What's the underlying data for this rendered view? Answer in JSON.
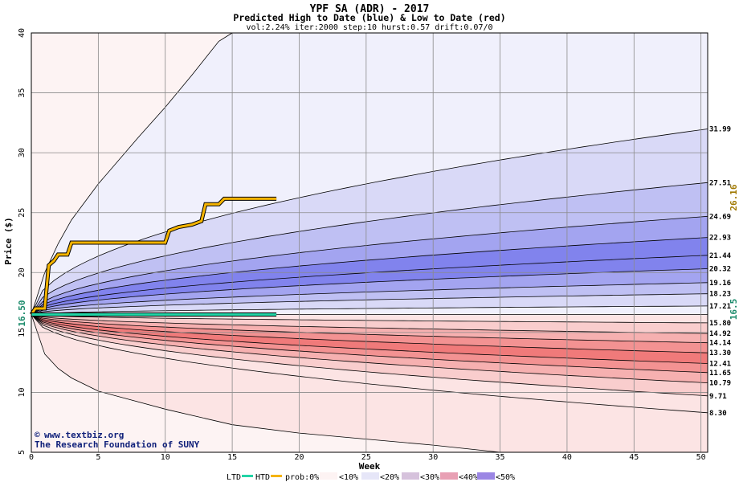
{
  "header": {
    "title": "YPF SA (ADR) - 2017",
    "subtitle": "Predicted High to Date (blue) &  Low to Date (red)",
    "params": "vol:2.24% iter:2000 step:10 hurst:0.57 drift:0.07/0"
  },
  "axes": {
    "xlabel": "Week",
    "ylabel": "Price ($)"
  },
  "footer": {
    "website": "www.textbiz.org",
    "copyright_symbol": "©",
    "org": "The Research Foundation of SUNY"
  },
  "annotations": {
    "start_price_label": "16.50",
    "current_low_label": "16.5",
    "current_high_label": "26.16"
  },
  "legend": {
    "ltd": "LTD",
    "htd": "HTD",
    "prob": "prob:0%",
    "bins": [
      "<10%",
      "<20%",
      "<30%",
      "<40%",
      "<50%"
    ]
  },
  "colors": {
    "plot_bg": "#fdf3f3",
    "band_blue_1": "#f0f0fc",
    "band_blue_2": "#d9d9f7",
    "band_blue_3": "#bfc0f3",
    "band_blue_4": "#a3a4f0",
    "band_blue_5": "#8183ed",
    "band_red_1": "#fce4e4",
    "band_red_2": "#f9cdcd",
    "band_red_3": "#f6b0b0",
    "band_red_4": "#f39292",
    "band_red_5": "#f07a7a",
    "htd_line": "#f5b400",
    "ltd_line": "#22d4a6",
    "right_label_gold": "#a07800",
    "right_label_green": "#1a8a6a"
  },
  "chart_data": {
    "type": "area",
    "x_range": [
      0,
      50.5
    ],
    "y_range": [
      5,
      40
    ],
    "x_ticks": [
      0,
      5,
      10,
      15,
      20,
      25,
      30,
      35,
      40,
      45,
      50
    ],
    "y_ticks": [
      5,
      10,
      15,
      20,
      25,
      30,
      35,
      40
    ],
    "grid": true,
    "start_price": 16.5,
    "outer_high_envelope": [
      [
        0,
        16.5
      ],
      [
        1,
        20.0
      ],
      [
        2,
        22.4
      ],
      [
        3,
        24.4
      ],
      [
        5,
        27.4
      ],
      [
        8,
        31.3
      ],
      [
        10,
        33.8
      ],
      [
        12,
        36.5
      ],
      [
        14,
        39.3
      ],
      [
        15,
        40.0
      ]
    ],
    "outer_low_envelope": [
      [
        0,
        16.5
      ],
      [
        1,
        13.2
      ],
      [
        2,
        12.0
      ],
      [
        3,
        11.2
      ],
      [
        5,
        10.1
      ],
      [
        10,
        8.6
      ],
      [
        15,
        7.3
      ],
      [
        20,
        6.6
      ],
      [
        25,
        6.1
      ],
      [
        30,
        5.6
      ],
      [
        35,
        5.0
      ]
    ],
    "right_labels": [
      "31.99",
      "27.51",
      "24.69",
      "22.93",
      "21.44",
      "20.32",
      "19.16",
      "18.23",
      "17.21",
      "15.80",
      "14.92",
      "14.14",
      "13.30",
      "12.41",
      "11.65",
      "10.79",
      "9.71",
      "8.30"
    ],
    "percentile_curves": [
      {
        "end": 31.99,
        "fill": "band_blue_1"
      },
      {
        "end": 27.51,
        "fill": "band_blue_2"
      },
      {
        "end": 24.69,
        "fill": "band_blue_3"
      },
      {
        "end": 22.93,
        "fill": "band_blue_4"
      },
      {
        "end": 21.44,
        "fill": "band_blue_5"
      },
      {
        "end": 20.32,
        "fill": "band_blue_5"
      },
      {
        "end": 19.16,
        "fill": "band_blue_4"
      },
      {
        "end": 18.23,
        "fill": "band_blue_3"
      },
      {
        "end": 17.21,
        "fill": "band_blue_2"
      },
      {
        "end": 16.5,
        "fill": "band_blue_1"
      },
      {
        "end": 15.8,
        "fill": "band_red_1"
      },
      {
        "end": 14.92,
        "fill": "band_red_2"
      },
      {
        "end": 14.14,
        "fill": "band_red_3"
      },
      {
        "end": 13.3,
        "fill": "band_red_4"
      },
      {
        "end": 12.41,
        "fill": "band_red_5"
      },
      {
        "end": 11.65,
        "fill": "band_red_5"
      },
      {
        "end": 10.79,
        "fill": "band_red_4"
      },
      {
        "end": 9.71,
        "fill": "band_red_3"
      },
      {
        "end": 8.3,
        "fill": "band_red_2"
      }
    ],
    "htd_series": [
      [
        0,
        16.5
      ],
      [
        0.3,
        17.0
      ],
      [
        1.0,
        17.0
      ],
      [
        1.3,
        20.6
      ],
      [
        1.7,
        21.0
      ],
      [
        2.0,
        21.5
      ],
      [
        2.7,
        21.5
      ],
      [
        3.0,
        22.5
      ],
      [
        10.0,
        22.5
      ],
      [
        10.3,
        23.5
      ],
      [
        11.0,
        23.8
      ],
      [
        12.0,
        24.0
      ],
      [
        12.7,
        24.3
      ],
      [
        13.0,
        25.7
      ],
      [
        14.0,
        25.7
      ],
      [
        14.4,
        26.16
      ],
      [
        18.3,
        26.16
      ]
    ],
    "ltd_series": [
      [
        0,
        16.5
      ],
      [
        18.3,
        16.5
      ]
    ]
  }
}
